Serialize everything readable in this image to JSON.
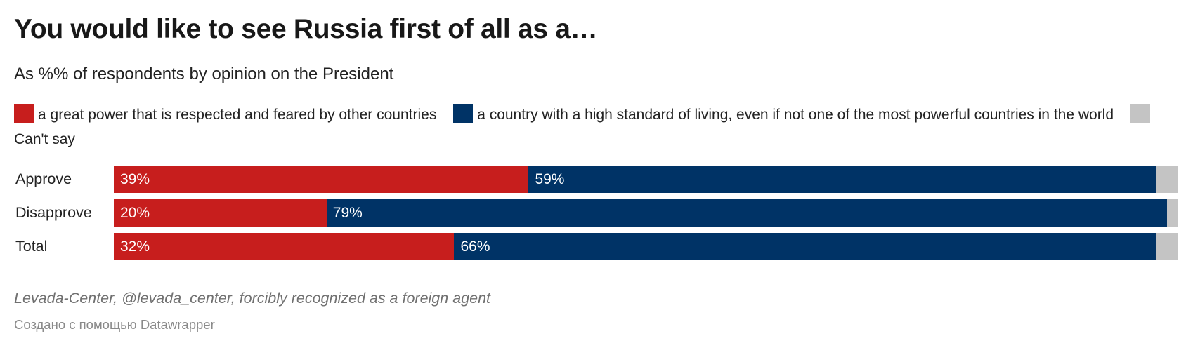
{
  "chart_data": {
    "type": "bar",
    "orientation": "horizontal",
    "stacked": true,
    "title": "You would like to see Russia first of all as a…",
    "subtitle": "As %% of respondents by opinion on the President",
    "categories": [
      "Approve",
      "Disapprove",
      "Total"
    ],
    "series": [
      {
        "name": "a great power that is respected and feared by other countries",
        "color": "#c71e1d",
        "values": [
          39,
          20,
          32
        ],
        "labels": [
          "39%",
          "20%",
          "32%"
        ]
      },
      {
        "name": "a country with a high standard of living, even if not one of the most powerful countries in the world",
        "color": "#003366",
        "values": [
          59,
          79,
          66
        ],
        "labels": [
          "59%",
          "79%",
          "66%"
        ]
      },
      {
        "name": "Can't say",
        "color": "#c4c4c4",
        "values": [
          2,
          1,
          2
        ],
        "labels": [
          "",
          "",
          ""
        ]
      }
    ],
    "xlim": [
      0,
      100
    ],
    "legend_position": "top",
    "source": "Levada-Center, @levada_center, forcibly recognized as a foreign agent",
    "credit": "Создано с помощью Datawrapper"
  }
}
